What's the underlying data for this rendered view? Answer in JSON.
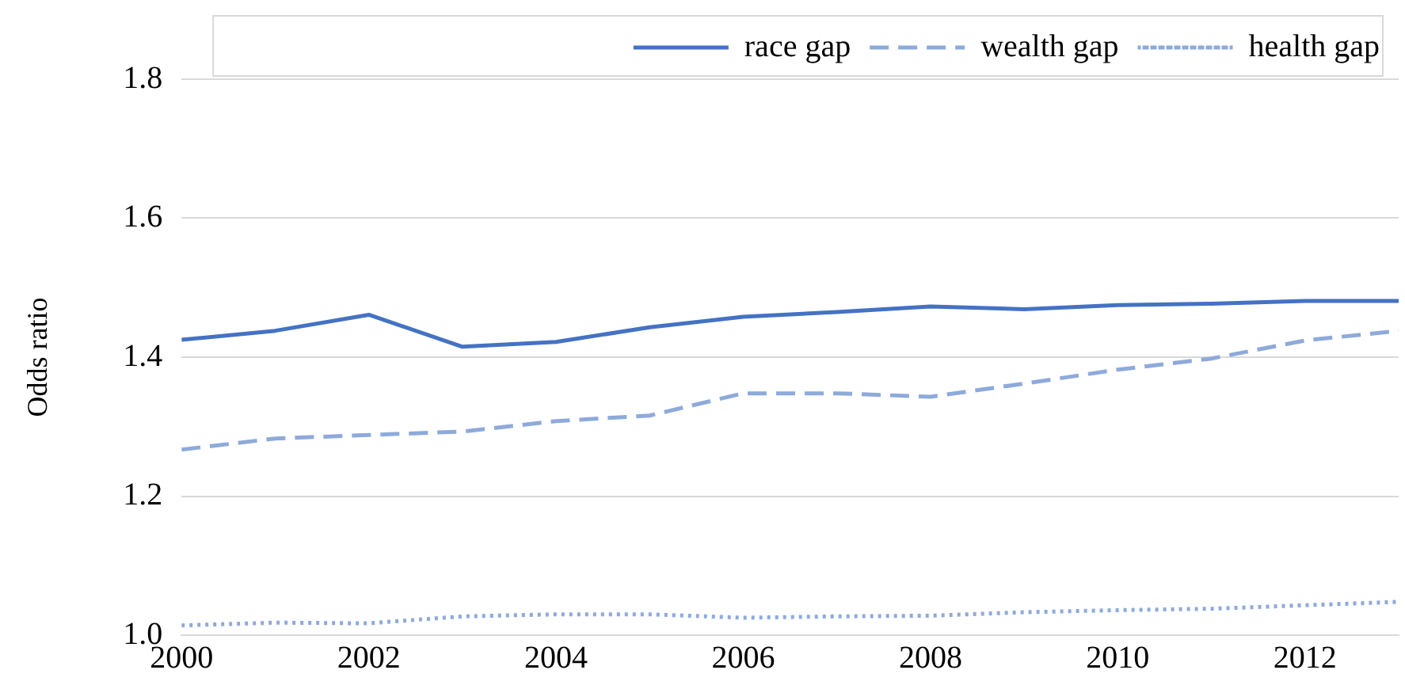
{
  "chart_data": {
    "type": "line",
    "ylabel": "Odds ratio",
    "x": [
      2000,
      2001,
      2002,
      2003,
      2004,
      2005,
      2006,
      2007,
      2008,
      2009,
      2010,
      2011,
      2012,
      2013
    ],
    "series": [
      {
        "name": "race gap",
        "color": "#4472c4",
        "line_style": "solid",
        "values": [
          1.425,
          1.438,
          1.461,
          1.415,
          1.422,
          1.443,
          1.458,
          1.465,
          1.473,
          1.469,
          1.475,
          1.477,
          1.481,
          1.481
        ]
      },
      {
        "name": "wealth gap",
        "color": "#8eaadb",
        "line_style": "dashed",
        "values": [
          1.267,
          1.283,
          1.288,
          1.293,
          1.308,
          1.316,
          1.348,
          1.348,
          1.343,
          1.362,
          1.382,
          1.398,
          1.424,
          1.438
        ]
      },
      {
        "name": "health gap",
        "color": "#8eaadb",
        "line_style": "dotted",
        "values": [
          1.014,
          1.018,
          1.017,
          1.027,
          1.03,
          1.03,
          1.025,
          1.027,
          1.028,
          1.033,
          1.036,
          1.038,
          1.043,
          1.048
        ]
      }
    ],
    "xlim": [
      2000,
      2013
    ],
    "xticks": [
      2000,
      2002,
      2004,
      2006,
      2008,
      2010,
      2012
    ],
    "ylim": [
      1.0,
      1.8
    ],
    "yticks": [
      {
        "value": 1,
        "label": "1.0"
      },
      1.2,
      1.4,
      1.6,
      1.8
    ],
    "grid": "y",
    "legend": "top",
    "marker": "none"
  }
}
